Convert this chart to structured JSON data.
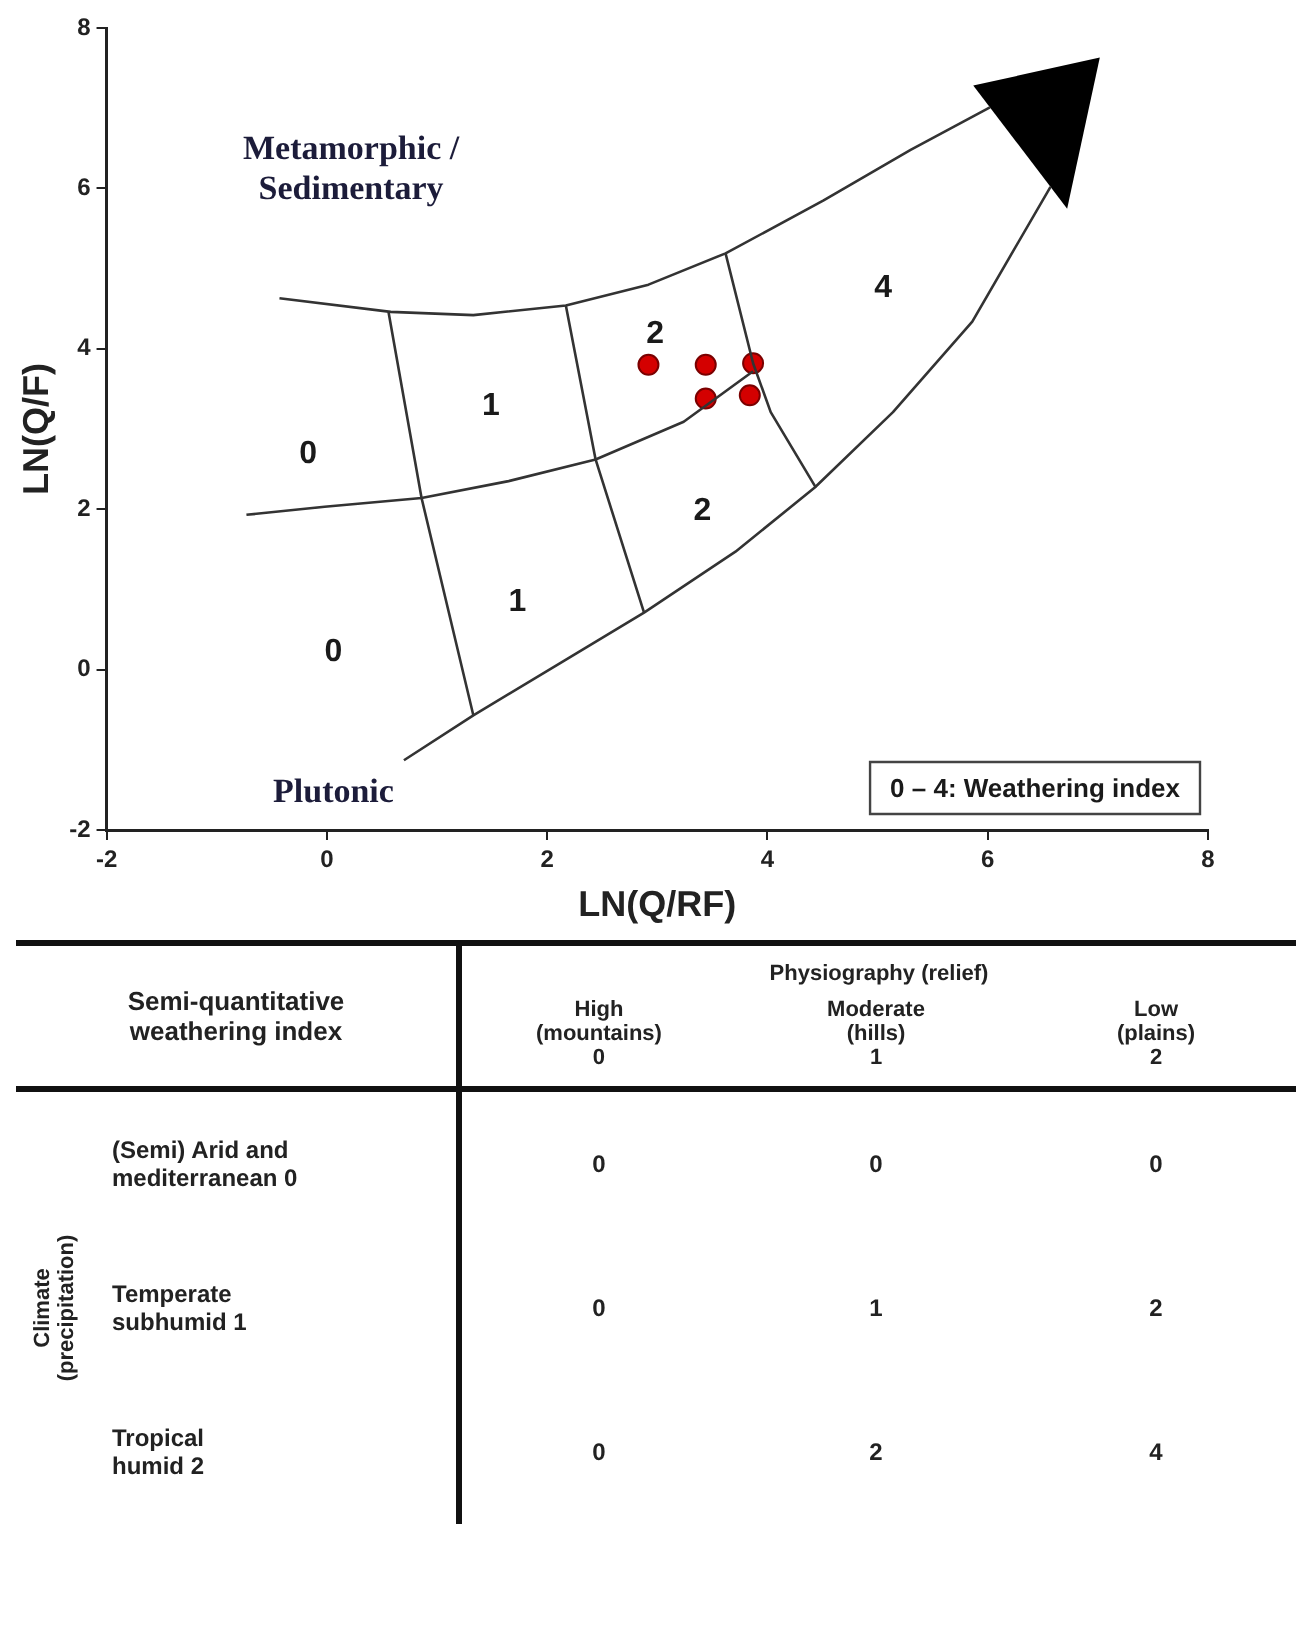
{
  "chart_data": [
    {
      "type": "scatter",
      "xlabel": "LN(Q/RF)",
      "ylabel": "LN(Q/F)",
      "xlim": [
        -2,
        8
      ],
      "ylim": [
        -2,
        8
      ],
      "xticks": [
        -2,
        0,
        2,
        4,
        6,
        8
      ],
      "yticks": [
        -2,
        0,
        2,
        4,
        6,
        8
      ],
      "grid": false,
      "legend": false,
      "series": [
        {
          "type": "line",
          "color": "#333333",
          "x": [
            -0.43,
            0.58,
            1.33,
            2.17,
            2.92,
            3.62,
            4.51,
            5.3,
            6.02
          ],
          "values": [
            4.63,
            4.46,
            4.42,
            4.54,
            4.8,
            5.19,
            5.85,
            6.48,
            7.01
          ]
        },
        {
          "type": "line",
          "color": "#333333",
          "x": [
            0.7,
            1.33,
            2.13,
            2.88,
            3.71,
            4.43,
            5.14,
            5.86,
            6.57
          ],
          "values": [
            -1.13,
            -0.57,
            0.09,
            0.71,
            1.47,
            2.27,
            3.21,
            4.34,
            6.02
          ]
        },
        {
          "type": "line",
          "color": "#333333",
          "x": [
            -0.73,
            -0.02,
            0.86,
            1.65,
            2.44,
            3.24,
            3.87
          ],
          "values": [
            1.93,
            2.03,
            2.14,
            2.35,
            2.62,
            3.09,
            3.72
          ]
        },
        {
          "type": "line",
          "color": "#333333",
          "x": [
            0.56,
            0.86,
            1.33
          ],
          "values": [
            4.46,
            2.14,
            -0.57
          ]
        },
        {
          "type": "line",
          "color": "#333333",
          "x": [
            2.17,
            2.44,
            2.88
          ],
          "values": [
            4.54,
            2.62,
            0.71
          ]
        },
        {
          "type": "line",
          "color": "#333333",
          "x": [
            3.62,
            3.87,
            4.03,
            4.44
          ],
          "values": [
            5.19,
            3.82,
            3.21,
            2.27
          ]
        },
        {
          "type": "scatter",
          "marker": "circle",
          "color": "#d40000",
          "x": [
            2.92,
            3.44,
            3.87,
            3.44,
            3.84
          ],
          "values": [
            3.8,
            3.8,
            3.82,
            3.38,
            3.42
          ]
        }
      ],
      "annotations": [
        "Metamorphic /\nSedimentary",
        "Plutonic",
        "0",
        "1",
        "2",
        "4",
        "0",
        "1",
        "2",
        "0 – 4: Weathering index"
      ]
    },
    {
      "type": "heatmap",
      "title": "Semi-quantitative\nweathering index",
      "xlabel": "Physiography (relief)",
      "ylabel": "Climate\n(precipitation)",
      "categories": [
        "High\n(mountains)\n0",
        "Moderate\n(hills)\n1",
        "Low\n(plains)\n2"
      ],
      "y_categories": [
        "(Semi) Arid and\nmediterranean 0",
        "Temperate\nsubhumid 1",
        "Tropical\nhumid 2"
      ],
      "cells": [
        [
          0,
          0,
          0
        ],
        [
          0,
          1,
          2
        ],
        [
          0,
          2,
          4
        ]
      ],
      "data_labels": true
    }
  ]
}
